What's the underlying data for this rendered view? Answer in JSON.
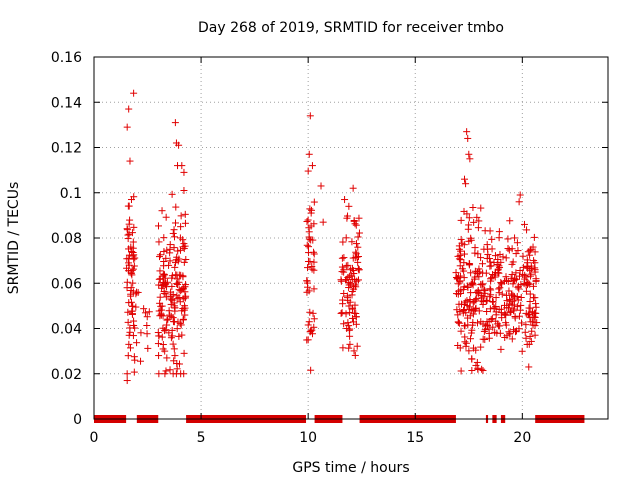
{
  "chart_data": {
    "type": "scatter",
    "title": "Day 268 of 2019, SRMTID for receiver tmbo",
    "xlabel": "GPS time / hours",
    "ylabel": "SRMTID / TECUs",
    "xlim": [
      0,
      24
    ],
    "ylim": [
      0,
      0.16
    ],
    "xticks": [
      0,
      5,
      10,
      15,
      20
    ],
    "xtick_labels": [
      "0",
      "5",
      "10",
      "15",
      "20"
    ],
    "yticks": [
      0,
      0.02,
      0.04,
      0.06,
      0.08,
      0.1,
      0.12,
      0.14,
      0.16
    ],
    "ytick_labels": [
      "0",
      "0.02",
      "0.04",
      "0.06",
      "0.08",
      "0.1",
      "0.12",
      "0.14",
      "0.16"
    ],
    "grid": true,
    "marker": "+",
    "color": "#e00000",
    "series": [
      {
        "name": "SRMTID",
        "clusters": [
          {
            "x_range": [
              1.5,
              2.0
            ],
            "y_center": 0.058,
            "y_spread": 0.018,
            "count": 70
          },
          {
            "x_range": [
              2.0,
              2.6
            ],
            "y_center": 0.042,
            "y_spread": 0.008,
            "count": 10
          },
          {
            "x_range": [
              3.0,
              4.3
            ],
            "y_center": 0.056,
            "y_spread": 0.018,
            "count": 170
          },
          {
            "x_range": [
              9.9,
              10.3
            ],
            "y_center": 0.068,
            "y_spread": 0.018,
            "count": 45
          },
          {
            "x_range": [
              11.5,
              12.4
            ],
            "y_center": 0.062,
            "y_spread": 0.014,
            "count": 90
          },
          {
            "x_range": [
              16.9,
              18.3
            ],
            "y_center": 0.056,
            "y_spread": 0.016,
            "count": 160
          },
          {
            "x_range": [
              18.3,
              20.7
            ],
            "y_center": 0.054,
            "y_spread": 0.013,
            "count": 230
          }
        ],
        "highlight_points": [
          [
            1.55,
            0.129
          ],
          [
            1.62,
            0.137
          ],
          [
            1.68,
            0.114
          ],
          [
            1.85,
            0.144
          ],
          [
            1.55,
            0.017
          ],
          [
            1.6,
            0.028
          ],
          [
            1.9,
            0.026
          ],
          [
            1.75,
            0.097
          ],
          [
            3.8,
            0.131
          ],
          [
            3.85,
            0.122
          ],
          [
            3.95,
            0.121
          ],
          [
            3.9,
            0.112
          ],
          [
            4.1,
            0.112
          ],
          [
            4.2,
            0.109
          ],
          [
            3.4,
            0.027
          ],
          [
            3.75,
            0.031
          ],
          [
            4.2,
            0.101
          ],
          [
            3.3,
            0.03
          ],
          [
            10.1,
            0.134
          ],
          [
            10.05,
            0.117
          ],
          [
            10.2,
            0.112
          ],
          [
            10.0,
            0.035
          ],
          [
            10.05,
            0.043
          ],
          [
            10.6,
            0.103
          ],
          [
            10.7,
            0.087
          ],
          [
            11.7,
            0.097
          ],
          [
            12.1,
            0.102
          ],
          [
            11.9,
            0.094
          ],
          [
            11.95,
            0.033
          ],
          [
            11.8,
            0.04
          ],
          [
            17.4,
            0.127
          ],
          [
            17.45,
            0.124
          ],
          [
            17.5,
            0.117
          ],
          [
            17.55,
            0.115
          ],
          [
            17.3,
            0.106
          ],
          [
            17.35,
            0.104
          ],
          [
            17.9,
            0.025
          ],
          [
            18.1,
            0.022
          ],
          [
            19.9,
            0.099
          ],
          [
            19.85,
            0.096
          ],
          [
            20.1,
            0.086
          ],
          [
            20.3,
            0.023
          ],
          [
            20.4,
            0.075
          ],
          [
            20.5,
            0.076
          ]
        ]
      }
    ],
    "zero_segments": [
      [
        0.0,
        1.5
      ],
      [
        2.0,
        3.0
      ],
      [
        4.3,
        9.9
      ],
      [
        10.3,
        11.6
      ],
      [
        12.4,
        16.9
      ],
      [
        18.3,
        18.4
      ],
      [
        18.6,
        18.8
      ],
      [
        19.0,
        19.2
      ],
      [
        20.6,
        22.9
      ]
    ]
  }
}
